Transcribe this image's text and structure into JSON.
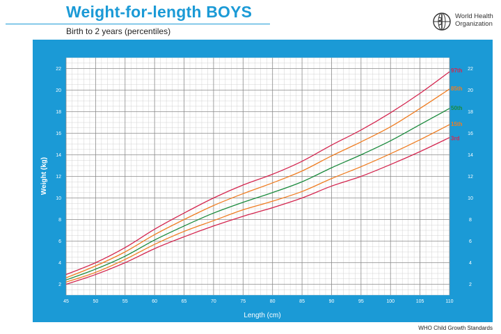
{
  "header": {
    "title": "Weight-for-length BOYS",
    "subtitle": "Birth to 2 years (percentiles)",
    "logo_text_line1": "World Health",
    "logo_text_line2": "Organization"
  },
  "footer": {
    "text": "WHO Child Growth Standards"
  },
  "colors": {
    "panel": "#1b9ad6",
    "grid_major": "#8a8a8a",
    "grid_minor": "#c8c8c8",
    "p97": "#d4264f",
    "p85": "#ef7d22",
    "p50": "#1a8a3c",
    "p15": "#ef7d22",
    "p3": "#d4264f"
  },
  "chart_data": {
    "type": "line",
    "title": "Weight-for-length BOYS",
    "subtitle": "Birth to 2 years (percentiles)",
    "xlabel": "Length (cm)",
    "ylabel": "Weight (kg)",
    "xlim": [
      45,
      110
    ],
    "ylim": [
      1,
      23
    ],
    "x_ticks": [
      "45",
      "50",
      "55",
      "60",
      "65",
      "70",
      "75",
      "80",
      "85",
      "90",
      "95",
      "100",
      "105",
      "110"
    ],
    "y_ticks": [
      "2",
      "4",
      "6",
      "8",
      "10",
      "12",
      "14",
      "16",
      "18",
      "20",
      "22"
    ],
    "grid": true,
    "x": [
      45,
      50,
      55,
      60,
      65,
      70,
      75,
      80,
      85,
      90,
      95,
      100,
      105,
      110
    ],
    "series": [
      {
        "name": "97th",
        "color_key": "p97",
        "values": [
          2.9,
          4.0,
          5.4,
          7.1,
          8.6,
          10.0,
          11.2,
          12.2,
          13.4,
          14.9,
          16.3,
          17.9,
          19.7,
          21.7
        ]
      },
      {
        "name": "85th",
        "color_key": "p85",
        "values": [
          2.6,
          3.7,
          5.0,
          6.6,
          8.0,
          9.3,
          10.4,
          11.4,
          12.5,
          13.9,
          15.2,
          16.6,
          18.3,
          20.1
        ]
      },
      {
        "name": "50th",
        "color_key": "p50",
        "values": [
          2.4,
          3.4,
          4.6,
          6.1,
          7.4,
          8.6,
          9.6,
          10.5,
          11.5,
          12.8,
          14.0,
          15.3,
          16.8,
          18.3
        ]
      },
      {
        "name": "15th",
        "color_key": "p15",
        "values": [
          2.2,
          3.1,
          4.3,
          5.7,
          6.9,
          7.9,
          8.9,
          9.7,
          10.6,
          11.8,
          12.9,
          14.1,
          15.4,
          16.8
        ]
      },
      {
        "name": "3rd",
        "color_key": "p3",
        "values": [
          2.0,
          2.9,
          4.0,
          5.3,
          6.4,
          7.4,
          8.3,
          9.1,
          10.0,
          11.1,
          12.0,
          13.1,
          14.3,
          15.6
        ]
      }
    ]
  }
}
